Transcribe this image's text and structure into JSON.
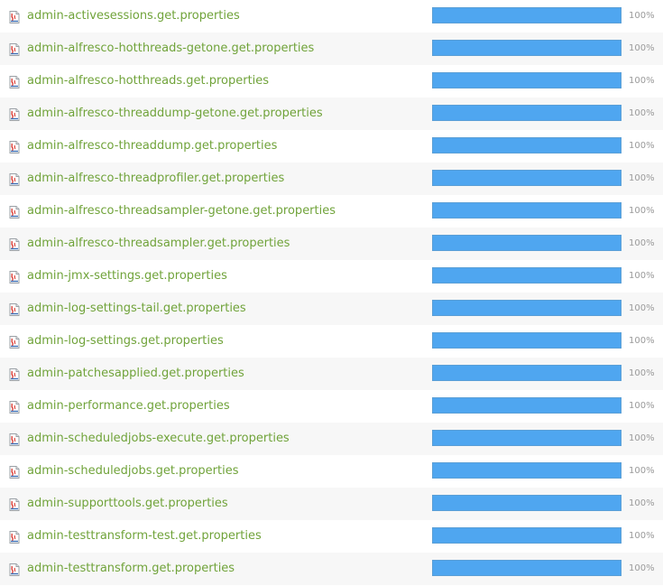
{
  "colors": {
    "link": "#70a33a",
    "bar_fill": "#4fa6f0",
    "bar_border": "#5b9fd6",
    "alt_row": "#f7f7f7",
    "percent_text": "#9a9a9a"
  },
  "file_icon": "java-properties-file-icon",
  "files": [
    {
      "name": "admin-activesessions.get.properties",
      "coverage": 1.0,
      "coverage_label": "100%"
    },
    {
      "name": "admin-alfresco-hotthreads-getone.get.properties",
      "coverage": 1.0,
      "coverage_label": "100%"
    },
    {
      "name": "admin-alfresco-hotthreads.get.properties",
      "coverage": 1.0,
      "coverage_label": "100%"
    },
    {
      "name": "admin-alfresco-threaddump-getone.get.properties",
      "coverage": 1.0,
      "coverage_label": "100%"
    },
    {
      "name": "admin-alfresco-threaddump.get.properties",
      "coverage": 1.0,
      "coverage_label": "100%"
    },
    {
      "name": "admin-alfresco-threadprofiler.get.properties",
      "coverage": 1.0,
      "coverage_label": "100%"
    },
    {
      "name": "admin-alfresco-threadsampler-getone.get.properties",
      "coverage": 1.0,
      "coverage_label": "100%"
    },
    {
      "name": "admin-alfresco-threadsampler.get.properties",
      "coverage": 1.0,
      "coverage_label": "100%"
    },
    {
      "name": "admin-jmx-settings.get.properties",
      "coverage": 1.0,
      "coverage_label": "100%"
    },
    {
      "name": "admin-log-settings-tail.get.properties",
      "coverage": 1.0,
      "coverage_label": "100%"
    },
    {
      "name": "admin-log-settings.get.properties",
      "coverage": 1.0,
      "coverage_label": "100%"
    },
    {
      "name": "admin-patchesapplied.get.properties",
      "coverage": 1.0,
      "coverage_label": "100%"
    },
    {
      "name": "admin-performance.get.properties",
      "coverage": 1.0,
      "coverage_label": "100%"
    },
    {
      "name": "admin-scheduledjobs-execute.get.properties",
      "coverage": 1.0,
      "coverage_label": "100%"
    },
    {
      "name": "admin-scheduledjobs.get.properties",
      "coverage": 1.0,
      "coverage_label": "100%"
    },
    {
      "name": "admin-supporttools.get.properties",
      "coverage": 1.0,
      "coverage_label": "100%"
    },
    {
      "name": "admin-testtransform-test.get.properties",
      "coverage": 1.0,
      "coverage_label": "100%"
    },
    {
      "name": "admin-testtransform.get.properties",
      "coverage": 1.0,
      "coverage_label": "100%"
    }
  ]
}
